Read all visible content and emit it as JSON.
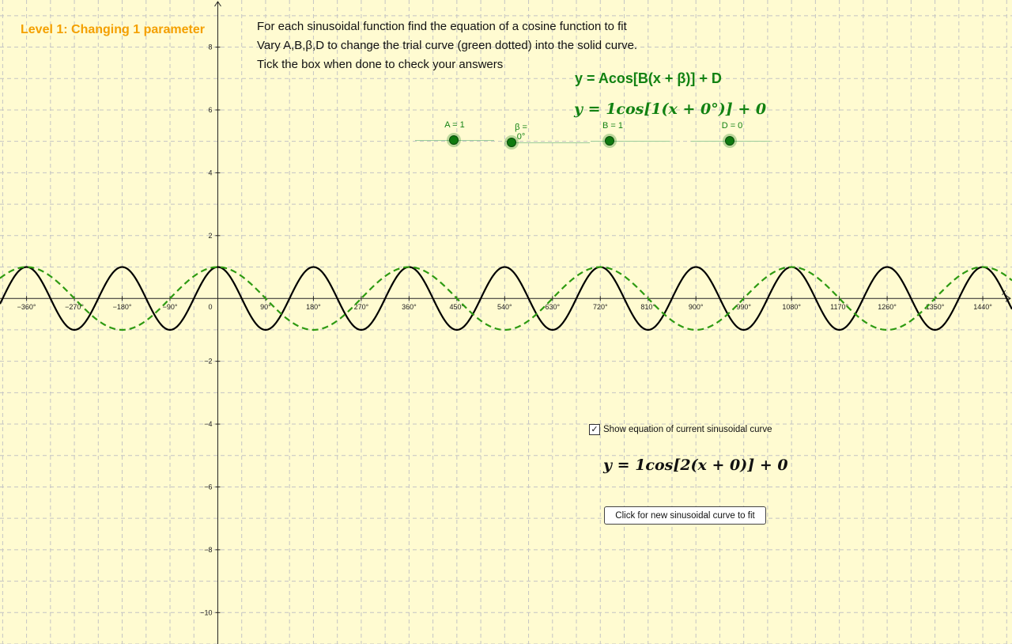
{
  "level_title": "Level 1: Changing 1 parameter",
  "instructions": [
    "For each sinusoidal function find the equation of a cosine function to fit",
    "Vary A,B,β,D to change the trial curve (green dotted) into the solid curve.",
    "Tick the box when done to check your answers"
  ],
  "general_equation": "y = Acos[B(x + β)] + D",
  "trial_equation": "y = 1cos[1(x + 0°)] + 0",
  "sliders": [
    {
      "label": "A = 1",
      "fraction": 0.5
    },
    {
      "label": "β = 0°",
      "fraction": 0.02
    },
    {
      "label": "B = 1",
      "fraction": 0.25
    },
    {
      "label": "D = 0",
      "fraction": 0.5
    }
  ],
  "show_equation": {
    "label": "Show equation of current sinusoidal curve",
    "checked": true
  },
  "current_equation": "y = 1cos[2(x + 0)] + 0",
  "new_curve_button": "Click for new sinusoidal curve to fit",
  "colors": {
    "background": "#fffbd1",
    "title": "#f4a000",
    "accent": "#128212",
    "target_curve": "#000000",
    "trial_curve": "#2e9a12",
    "grid": "#c4c4c4"
  },
  "chart_data": {
    "type": "line",
    "xlabel": "x",
    "ylabel": "",
    "x_unit": "degrees",
    "xlim": [
      -410,
      1495
    ],
    "ylim": [
      -11,
      9.5
    ],
    "x_ticks": [
      -360,
      -270,
      -180,
      -90,
      90,
      180,
      270,
      360,
      450,
      540,
      630,
      720,
      810,
      900,
      990,
      1080,
      1170,
      1260,
      1350,
      1440
    ],
    "x_tick_labels": [
      "−360°",
      "−270°",
      "−180°",
      "−90°",
      "90°",
      "180°",
      "270°",
      "360°",
      "450°",
      "540°",
      "630°",
      "720°",
      "810°",
      "900°",
      "990°",
      "1080°",
      "1170°",
      "1260°",
      "1350°",
      "1440°"
    ],
    "y_ticks": [
      -10,
      -8,
      -6,
      -4,
      -2,
      2,
      4,
      6,
      8
    ],
    "y_tick_labels": [
      "−10",
      "−8",
      "−6",
      "−4",
      "−2",
      "2",
      "4",
      "6",
      "8"
    ],
    "origin_label": "0",
    "grid": true,
    "series": [
      {
        "A": 1,
        "B": 2,
        "beta": 0,
        "D": 0,
        "style": "solid",
        "color": "#000000"
      },
      {
        "A": 1,
        "B": 1,
        "beta": 0,
        "D": 0,
        "style": "dashed",
        "color": "#2e9a12"
      }
    ]
  }
}
